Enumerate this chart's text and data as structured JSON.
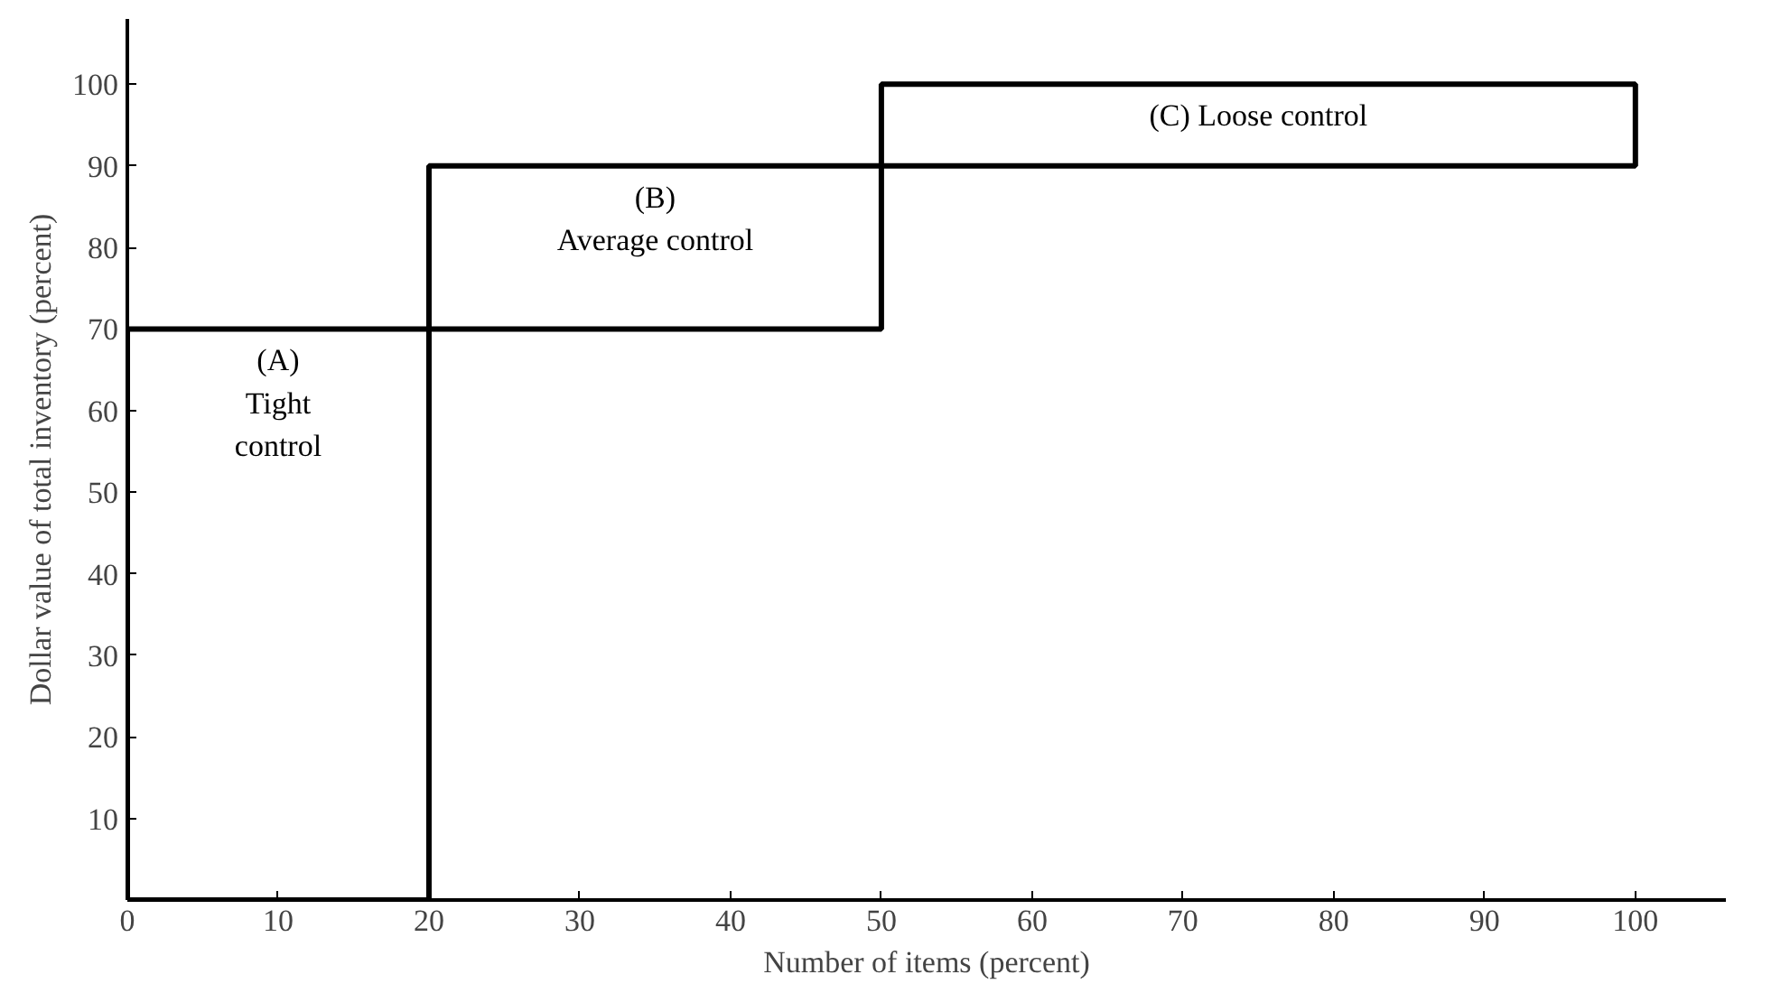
{
  "chart_data": {
    "type": "histogram",
    "xlabel": "Number of items (percent)",
    "ylabel": "Dollar value of total inventory (percent)",
    "bins": [
      0,
      20,
      50,
      100
    ],
    "values": [
      70,
      20,
      10
    ],
    "base": [
      0,
      70,
      90
    ],
    "color": "#000000",
    "xlim": [
      0,
      106
    ],
    "ylim": [
      0,
      108
    ],
    "xticks": [
      0,
      10,
      20,
      30,
      40,
      50,
      60,
      70,
      80,
      90,
      100
    ],
    "yticks": [
      10,
      20,
      30,
      40,
      50,
      60,
      70,
      80,
      90,
      100
    ],
    "grid": false,
    "annotations": [
      "(A)\nTight\ncontrol",
      "(B)\nAverage control",
      "(C) Loose control"
    ]
  }
}
